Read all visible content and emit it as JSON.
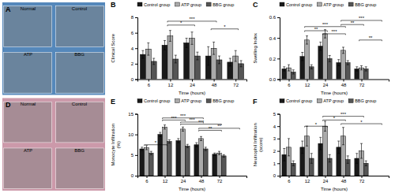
{
  "chart_data": [
    {
      "type": "image",
      "title": "A",
      "color": "#5588bb",
      "annotations": [
        "Normal",
        "Control",
        "ATP",
        "BBG"
      ]
    },
    {
      "type": "bar",
      "title": "B",
      "xlabel": "Time (hours)",
      "ylabel": "Clinical Score",
      "categories": [
        "6",
        "12",
        "24",
        "48",
        "72"
      ],
      "series": [
        {
          "name": "Control group",
          "color": "#1a1a1a",
          "values": [
            3.2,
            4.4,
            4.7,
            3.0,
            2.2
          ],
          "errors": [
            0.5,
            0.6,
            0.6,
            1.2,
            0.5
          ]
        },
        {
          "name": "ATP group",
          "color": "#aaaaaa",
          "values": [
            3.9,
            5.6,
            5.3,
            4.0,
            3.0
          ],
          "errors": [
            0.8,
            0.7,
            0.8,
            0.8,
            0.7
          ]
        },
        {
          "name": "BBG group",
          "color": "#555555",
          "values": [
            2.3,
            2.6,
            3.0,
            2.5,
            2.0
          ],
          "errors": [
            0.4,
            0.5,
            0.5,
            0.5,
            0.4
          ]
        }
      ],
      "ylim": [
        0,
        8
      ],
      "yticks": [
        0,
        2,
        4,
        6,
        8
      ],
      "legend": "top",
      "annotations": [
        {
          "text": "*",
          "x1": 1,
          "x2": 2,
          "y": 7.0
        },
        {
          "text": "***",
          "x1": 1,
          "x2": 3,
          "y": 7.5
        },
        {
          "text": "*",
          "x1": 3,
          "x2": 4,
          "y": 6.5
        }
      ]
    },
    {
      "type": "bar",
      "title": "C",
      "xlabel": "Time (hours)",
      "ylabel": "Swelling Index",
      "categories": [
        "6",
        "12",
        "24",
        "48",
        "72"
      ],
      "series": [
        {
          "name": "Control group",
          "color": "#1a1a1a",
          "values": [
            0.1,
            0.22,
            0.32,
            0.16,
            0.1
          ],
          "errors": [
            0.02,
            0.04,
            0.04,
            0.03,
            0.02
          ]
        },
        {
          "name": "ATP group",
          "color": "#aaaaaa",
          "values": [
            0.11,
            0.38,
            0.44,
            0.28,
            0.11
          ],
          "errors": [
            0.03,
            0.04,
            0.04,
            0.03,
            0.02
          ]
        },
        {
          "name": "BBG group",
          "color": "#555555",
          "values": [
            0.07,
            0.12,
            0.2,
            0.16,
            0.1
          ],
          "errors": [
            0.02,
            0.02,
            0.03,
            0.02,
            0.02
          ]
        }
      ],
      "ylim": [
        0,
        0.6
      ],
      "yticks": [
        {
          "value": 0,
          "label": "0.0"
        },
        0.2,
        0.4,
        0.6
      ],
      "legend": "top",
      "annotations": [
        {
          "text": "**",
          "x1": 1,
          "x2": 2,
          "y": 0.47
        },
        {
          "text": "***",
          "x1": 1,
          "x2": 3,
          "y": 0.51
        },
        {
          "text": "***",
          "x1": 2,
          "x2": 3,
          "y": 0.44
        },
        {
          "text": "**",
          "x1": 3,
          "x2": 4,
          "y": 0.53
        },
        {
          "text": "***",
          "x1": 3,
          "x2": 5,
          "y": 0.57
        },
        {
          "text": "**",
          "x1": 4,
          "x2": 5,
          "y": 0.38
        }
      ]
    },
    {
      "type": "image",
      "title": "D",
      "color": "#cc99aa",
      "annotations": [
        "Normal",
        "Control",
        "ATP",
        "BBG"
      ]
    },
    {
      "type": "bar",
      "title": "E",
      "xlabel": "Time (hours)",
      "ylabel": "Monocyte Infiltration\n(%)",
      "categories": [
        "6",
        "12",
        "24",
        "48",
        "72"
      ],
      "series": [
        {
          "name": "Control group",
          "color": "#1a1a1a",
          "values": [
            6.5,
            10.0,
            8.5,
            7.5,
            5.2
          ],
          "errors": [
            0.4,
            0.5,
            0.5,
            0.5,
            0.3
          ]
        },
        {
          "name": "ATP group",
          "color": "#aaaaaa",
          "values": [
            6.8,
            11.8,
            11.3,
            9.0,
            5.5
          ],
          "errors": [
            0.5,
            0.5,
            0.5,
            0.5,
            0.4
          ]
        },
        {
          "name": "BBG group",
          "color": "#555555",
          "values": [
            5.5,
            8.3,
            7.2,
            6.5,
            4.8
          ],
          "errors": [
            0.4,
            0.4,
            0.4,
            0.4,
            0.3
          ]
        }
      ],
      "ylim": [
        0,
        15
      ],
      "yticks": [
        0,
        5,
        10,
        15
      ],
      "legend": "top",
      "annotations": [
        {
          "text": "*",
          "x1": 0,
          "x2": 1,
          "y": 7.5
        },
        {
          "text": "***",
          "x1": 1,
          "x2": 2,
          "y": 13.5
        },
        {
          "text": "***",
          "x1": 1,
          "x2": 3,
          "y": 14.0
        },
        {
          "text": "***",
          "x1": 2,
          "x2": 3,
          "y": 13.0
        },
        {
          "text": "***",
          "x1": 2,
          "x2": 4,
          "y": 12.5
        },
        {
          "text": "**",
          "x1": 3,
          "x2": 4,
          "y": 11.0
        },
        {
          "text": "**",
          "x1": 3,
          "x2": 5,
          "y": 11.5
        }
      ]
    },
    {
      "type": "bar",
      "title": "F",
      "xlabel": "Time (hours)",
      "ylabel": "Neutrophil Infiltration\n(score)",
      "categories": [
        "6",
        "12",
        "24",
        "48",
        "72"
      ],
      "series": [
        {
          "name": "Control group",
          "color": "#1a1a1a",
          "values": [
            1.7,
            2.3,
            2.6,
            2.3,
            1.4
          ],
          "errors": [
            0.5,
            0.5,
            0.5,
            0.5,
            0.4
          ]
        },
        {
          "name": "ATP group",
          "color": "#aaaaaa",
          "values": [
            2.3,
            3.2,
            4.0,
            3.2,
            2.0
          ],
          "errors": [
            0.7,
            0.8,
            0.4,
            0.7,
            0.6
          ]
        },
        {
          "name": "BBG group",
          "color": "#555555",
          "values": [
            1.0,
            1.4,
            1.4,
            1.3,
            1.0
          ],
          "errors": [
            0.2,
            0.4,
            0.3,
            0.3,
            0.2
          ]
        }
      ],
      "ylim": [
        0,
        5
      ],
      "yticks": [
        0,
        1,
        2,
        3,
        4,
        5
      ],
      "legend": "top",
      "annotations": [
        {
          "text": "*",
          "x1": 1,
          "x2": 2,
          "y": 4.0
        },
        {
          "text": "*",
          "x1": 2,
          "x2": 3,
          "y": 4.5
        },
        {
          "text": "***",
          "x1": 2,
          "x2": 4,
          "y": 4.8
        },
        {
          "text": "*",
          "x1": 3,
          "x2": 5,
          "y": 4.2
        }
      ]
    }
  ]
}
